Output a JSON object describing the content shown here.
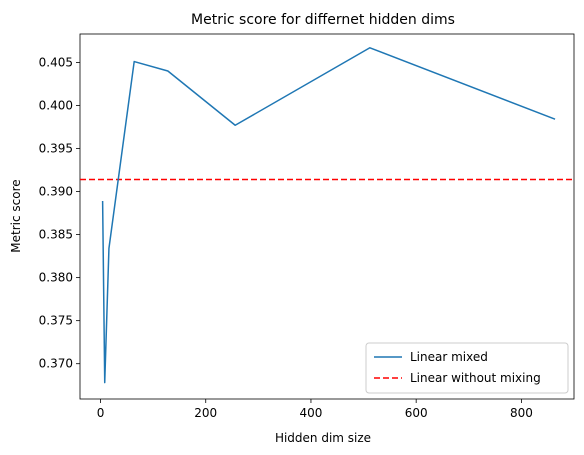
{
  "chart_data": {
    "type": "line",
    "title": "Metric score for differnet hidden dims",
    "xlabel": "Hidden dim size",
    "ylabel": "Metric score",
    "xlim": [
      -39,
      900
    ],
    "ylim": [
      0.3659,
      0.4083
    ],
    "xticks": [
      0,
      200,
      400,
      600,
      800
    ],
    "yticks": [
      0.37,
      0.375,
      0.38,
      0.385,
      0.39,
      0.395,
      0.4,
      0.405
    ],
    "ytick_labels": [
      "0.370",
      "0.375",
      "0.380",
      "0.385",
      "0.390",
      "0.395",
      "0.400",
      "0.405"
    ],
    "grid": false,
    "legend_position": "lower-right",
    "series": [
      {
        "name": "Linear mixed",
        "style": "solid",
        "color": "#1f77b4",
        "x": [
          4,
          8,
          16,
          64,
          128,
          256,
          512,
          864
        ],
        "y": [
          0.3889,
          0.3678,
          0.3834,
          0.4051,
          0.404,
          0.3977,
          0.4067,
          0.3984
        ]
      }
    ],
    "hlines": [
      {
        "name": "Linear without mixing",
        "style": "dashed",
        "color": "#ff0000",
        "y": 0.3914
      }
    ]
  }
}
